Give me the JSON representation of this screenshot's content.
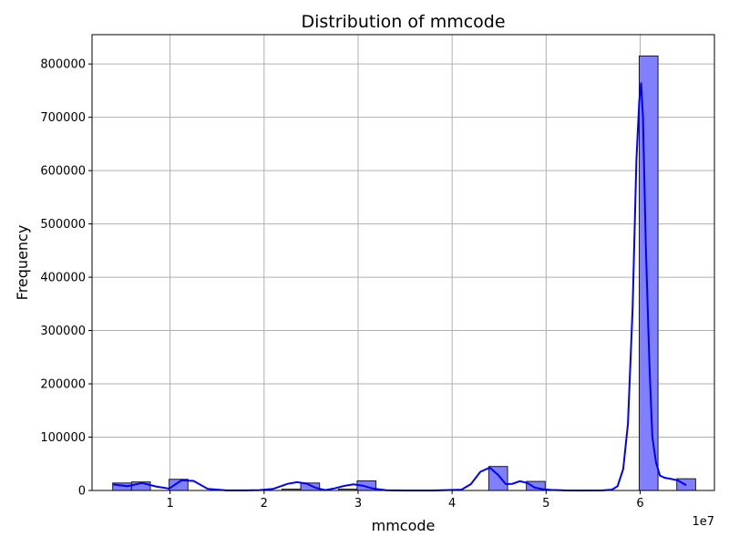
{
  "chart_data": {
    "type": "bar",
    "title": "Distribution of mmcode",
    "xlabel": "mmcode",
    "ylabel": "Frequency",
    "x_offset_label": "1e7",
    "xlim": [
      1700000.0,
      67900000.0
    ],
    "ylim": [
      0,
      855000
    ],
    "grid": true,
    "x_ticks": [
      {
        "value": 10000000.0,
        "label": "1"
      },
      {
        "value": 20000000.0,
        "label": "2"
      },
      {
        "value": 30000000.0,
        "label": "3"
      },
      {
        "value": 40000000.0,
        "label": "4"
      },
      {
        "value": 50000000.0,
        "label": "5"
      },
      {
        "value": 60000000.0,
        "label": "6"
      }
    ],
    "y_ticks": [
      {
        "value": 0,
        "label": "0"
      },
      {
        "value": 100000,
        "label": "100000"
      },
      {
        "value": 200000,
        "label": "200000"
      },
      {
        "value": 300000,
        "label": "300000"
      },
      {
        "value": 400000,
        "label": "400000"
      },
      {
        "value": 500000,
        "label": "500000"
      },
      {
        "value": 600000,
        "label": "600000"
      },
      {
        "value": 700000,
        "label": "700000"
      },
      {
        "value": 800000,
        "label": "800000"
      }
    ],
    "bin_edges": [
      3900000.0,
      5900000.0,
      7900000.0,
      9900000.0,
      11900000.0,
      13900000.0,
      15900000.0,
      17900000.0,
      19900000.0,
      21900000.0,
      23900000.0,
      25900000.0,
      27900000.0,
      29900000.0,
      31900000.0,
      33900000.0,
      35900000.0,
      37900000.0,
      39900000.0,
      41900000.0,
      43900000.0,
      45900000.0,
      47900000.0,
      49900000.0,
      51900000.0,
      53900000.0,
      55900000.0,
      57900000.0,
      59900000.0,
      61900000.0,
      63900000.0,
      65900000.0
    ],
    "values": [
      14000,
      16000,
      0,
      21000,
      0,
      0,
      0,
      0,
      0,
      2500,
      14000,
      0,
      2500,
      18000,
      0,
      0,
      0,
      0,
      0,
      0,
      45000,
      0,
      17000,
      0,
      0,
      0,
      0,
      0,
      815000,
      0,
      22000
    ],
    "kde": {
      "x": [
        3900000.0,
        5500000.0,
        7000000.0,
        8500000.0,
        9900000.0,
        11200000.0,
        12500000.0,
        14000000.0,
        16000000.0,
        18000000.0,
        19500000.0,
        21000000.0,
        22500000.0,
        23500000.0,
        24500000.0,
        25500000.0,
        26500000.0,
        27500000.0,
        28500000.0,
        29500000.0,
        30500000.0,
        31500000.0,
        33000000.0,
        35000000.0,
        38000000.0,
        41000000.0,
        42000000.0,
        43000000.0,
        44000000.0,
        44900000.0,
        45700000.0,
        46400000.0,
        47200000.0,
        48000000.0,
        48800000.0,
        49600000.0,
        50500000.0,
        52000000.0,
        54000000.0,
        56000000.0,
        57000000.0,
        57600000.0,
        58200000.0,
        58700000.0,
        59200000.0,
        59600000.0,
        59900000.0,
        60100000.0,
        60300000.0,
        60600000.0,
        61000000.0,
        61300000.0,
        61700000.0,
        62100000.0,
        62600000.0,
        63200000.0,
        64000000.0,
        64900000.0
      ],
      "y": [
        11500,
        8000,
        14000,
        7500,
        3500,
        19000,
        18000,
        3000,
        200,
        100,
        700,
        3000,
        12500,
        15500,
        13000,
        5000,
        700,
        4000,
        8500,
        11500,
        9000,
        4000,
        500,
        0,
        0,
        1500,
        12000,
        35000,
        43000,
        29000,
        12000,
        12500,
        17500,
        14000,
        5500,
        2500,
        1000,
        200,
        0,
        200,
        1500,
        8000,
        40000,
        125000,
        340000,
        620000,
        730000,
        765000,
        700000,
        460000,
        230000,
        100000,
        52000,
        28000,
        24000,
        22000,
        19000,
        10000
      ]
    },
    "colors": {
      "bar_fill": "#8080ff",
      "bar_edge": "#1a1a1a",
      "kde_line": "#0000ff",
      "grid": "#b0b0b0"
    }
  }
}
